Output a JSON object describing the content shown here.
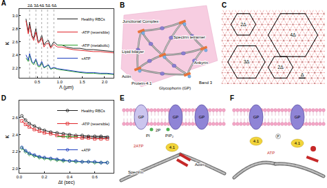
{
  "chart_data": [
    {
      "title": "A",
      "type": "line",
      "xlabel": "Λ (μm)",
      "ylabel": "κ",
      "x": [
        0.25,
        0.3,
        0.33,
        0.38,
        0.42,
        0.47,
        0.52,
        0.56,
        0.6,
        0.65,
        0.7,
        0.75,
        0.8,
        0.87,
        0.95,
        1.05,
        1.15,
        1.3,
        1.45,
        1.6,
        1.75,
        1.9,
        2.05,
        2.2
      ],
      "series": [
        {
          "name": "Healthy RBCs",
          "color": "#222222",
          "line_style": "solid",
          "values": [
            2.95,
            2.75,
            2.9,
            2.7,
            2.65,
            2.8,
            2.6,
            2.62,
            2.7,
            2.55,
            2.6,
            2.62,
            2.52,
            2.6,
            2.55,
            2.55,
            2.52,
            2.5,
            2.5,
            2.48,
            2.48,
            2.47,
            2.46,
            2.45
          ]
        },
        {
          "name": "-ATP (reversible)",
          "color": "#e0262a",
          "line_style": "solid",
          "values": [
            2.92,
            2.72,
            2.85,
            2.68,
            2.62,
            2.75,
            2.58,
            2.6,
            2.66,
            2.52,
            2.57,
            2.58,
            2.5,
            2.56,
            2.52,
            2.52,
            2.5,
            2.48,
            2.47,
            2.46,
            2.45,
            2.45,
            2.44,
            2.43
          ]
        },
        {
          "name": "-ATP (metabolic)",
          "color": "#2ca02c",
          "line_style": "solid",
          "values": [
            2.35,
            2.3,
            2.4,
            2.28,
            2.25,
            2.32,
            2.22,
            2.22,
            2.28,
            2.2,
            2.22,
            2.24,
            2.18,
            2.2,
            2.18,
            2.17,
            2.16,
            2.14,
            2.13,
            2.12,
            2.12,
            2.11,
            2.11,
            2.1
          ]
        },
        {
          "name": "+ATP",
          "color": "#1f3fbf",
          "line_style": "solid",
          "values": [
            2.4,
            2.32,
            2.42,
            2.3,
            2.27,
            2.34,
            2.24,
            2.24,
            2.3,
            2.21,
            2.23,
            2.25,
            2.19,
            2.21,
            2.19,
            2.18,
            2.17,
            2.15,
            2.14,
            2.13,
            2.13,
            2.12,
            2.12,
            2.11
          ]
        }
      ],
      "xlim": [
        0.1,
        2.2
      ],
      "ylim": [
        2.05,
        3.1
      ],
      "xticks": [
        0.5,
        {
          "value": 1,
          "label": "1.0"
        },
        1.5,
        {
          "value": 2,
          "label": "2.0"
        }
      ],
      "yticks": [
        2.2,
        2.4,
        2.6,
        2.8,
        {
          "value": 3,
          "label": "3.0"
        }
      ],
      "legend": "upper right",
      "annotations": [
        {
          "x": 0.33,
          "text": "2Δ"
        },
        {
          "x": 0.47,
          "text": "3Δ"
        },
        {
          "x": 0.6,
          "text": "4Δ"
        },
        {
          "x": 0.73,
          "text": "5Δ"
        },
        {
          "x": 0.87,
          "text": "6Δ"
        }
      ]
    },
    {
      "title": "D",
      "type": "scatter",
      "xlabel": "Δt (sec)",
      "ylabel": "κ",
      "x": [
        0.02,
        0.05,
        0.08,
        0.12,
        0.16,
        0.2,
        0.25,
        0.3,
        0.35,
        0.4,
        0.45,
        0.5,
        0.55,
        0.6,
        0.65,
        0.7
      ],
      "series": [
        {
          "name": "Healthy RBCs",
          "color": "#222222",
          "marker": "circle-open",
          "values": [
            2.62,
            2.57,
            2.53,
            2.5,
            2.47,
            2.45,
            2.43,
            2.42,
            2.41,
            2.4,
            2.39,
            2.39,
            2.38,
            2.38,
            2.38,
            2.37
          ]
        },
        {
          "name": "-ATP (reversible)",
          "color": "#e0262a",
          "marker": "square-open",
          "values": [
            2.56,
            2.52,
            2.49,
            2.46,
            2.44,
            2.42,
            2.41,
            2.39,
            2.38,
            2.37,
            2.37,
            2.36,
            2.36,
            2.35,
            2.35,
            2.35
          ]
        },
        {
          "name": "-ATP (metabolic)",
          "color": "#2ca02c",
          "marker": "diamond-open",
          "values": [
            2.24,
            2.2,
            2.17,
            2.15,
            2.13,
            2.12,
            2.11,
            2.1,
            2.09,
            2.09,
            2.08,
            2.08,
            2.08,
            2.07,
            2.07,
            2.07
          ]
        },
        {
          "name": "+ATP",
          "color": "#1f3fbf",
          "marker": "circle-open",
          "values": [
            2.25,
            2.21,
            2.18,
            2.16,
            2.14,
            2.13,
            2.12,
            2.11,
            2.1,
            2.09,
            2.09,
            2.08,
            2.08,
            2.08,
            2.07,
            2.07
          ]
        }
      ],
      "xlim": [
        0,
        0.75
      ],
      "ylim": [
        1.95,
        2.8
      ],
      "xticks": [
        {
          "value": 0,
          "label": "0.0"
        },
        0.2,
        0.4,
        0.6
      ],
      "yticks": [
        {
          "value": 2,
          "label": "2.0"
        },
        2.2,
        2.4,
        2.6
      ],
      "legend": "upper right"
    }
  ],
  "diagrams": {
    "B": {
      "label": "B",
      "texts": [
        "Junctional Complex",
        "Lipid bilayer",
        "Spectrin tetramer",
        "Ankyrin",
        "Actin",
        "Protein-4.1",
        "Glycophorin (GP)",
        "Band 3"
      ]
    },
    "C": {
      "label": "C",
      "hexagons": [
        {
          "label": "2Δ",
          "size": 2
        },
        {
          "label": "4Δ",
          "size": 4
        },
        {
          "label": "3Δ",
          "size": 3
        },
        {
          "label": "2Δ",
          "size": 2
        }
      ],
      "spacing": "Δ"
    },
    "E": {
      "label": "E",
      "texts": [
        "GP",
        "GP",
        "GP",
        "PI",
        "2P",
        "PIP₂",
        "2ATP",
        "4.1",
        "Actin",
        "Spectrin"
      ]
    },
    "F": {
      "label": "F",
      "texts": [
        "GP",
        "GP",
        "4.1",
        "4.1",
        "P",
        "ATP"
      ]
    }
  }
}
